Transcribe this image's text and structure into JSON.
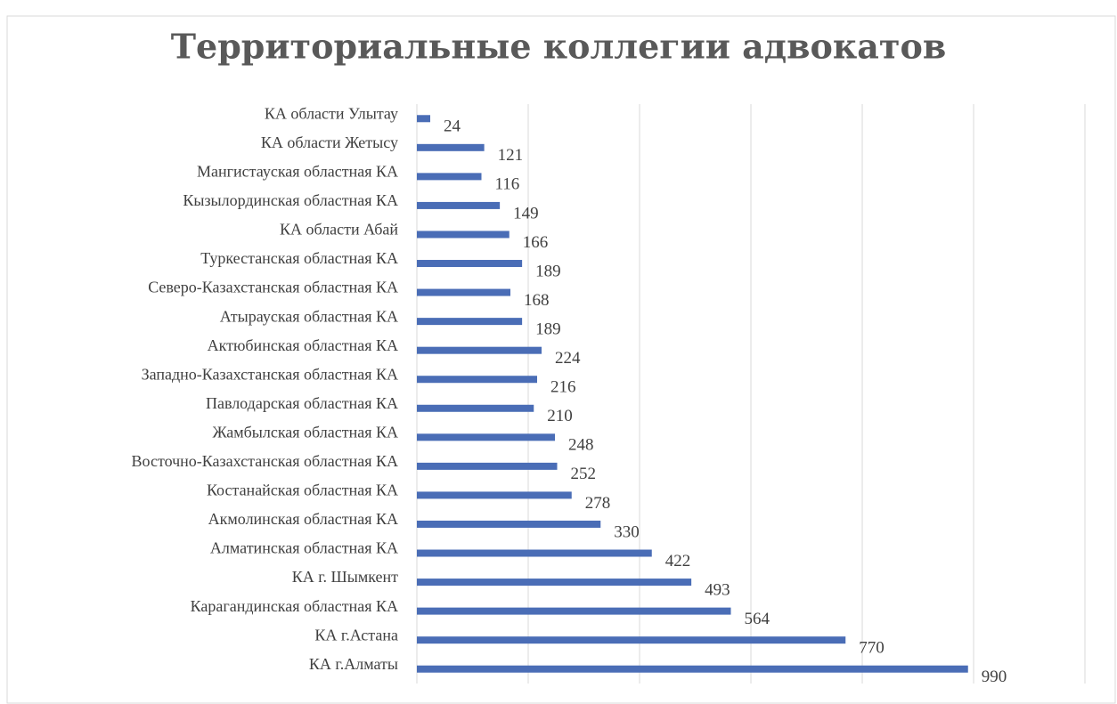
{
  "chart_data": {
    "type": "barh",
    "title": "Территориальные коллегии адвокатов",
    "categories": [
      "КА области Улытау",
      "КА области Жетысу",
      "Мангистауская областная КА",
      "Кызылординская областная КА",
      "КА области Абай",
      "Туркестанская областная КА",
      "Северо-Казахстанская областная КА",
      "Атырауская областная КА",
      "Актюбинская областная КА",
      "Западно-Казахстанская областная КА",
      "Павлодарская областная КА",
      "Жамбылская областная КА",
      "Восточно-Казахстанская областная КА",
      "Костанайская областная КА",
      "Акмолинская областная КА",
      "Алматинская областная КА",
      "КА г. Шымкент",
      "Карагандинская областная КА",
      "КА г.Астана",
      "КА г.Алматы"
    ],
    "values": [
      24,
      121,
      116,
      149,
      166,
      189,
      168,
      189,
      224,
      216,
      210,
      248,
      252,
      278,
      330,
      422,
      493,
      564,
      770,
      990
    ],
    "color": "#4a6db6",
    "xlim": [
      0,
      1200
    ],
    "xticks": [
      0,
      200,
      400,
      600,
      800,
      1000,
      1200
    ],
    "grid": true
  }
}
